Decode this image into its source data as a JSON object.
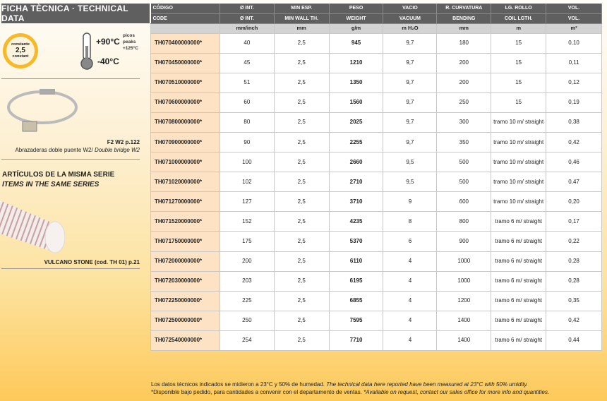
{
  "sidebar": {
    "title": "FICHA TÈCNICA · TECHNICAL DATA",
    "badge": {
      "top": "constante",
      "value": "2,5",
      "bottom": "constant"
    },
    "temp_max": "+90°C",
    "temp_min": "-40°C",
    "peaks": [
      "picos",
      "peaks",
      "+125°C"
    ],
    "accessory": {
      "ref": "F2 W2 p.122",
      "desc_es": "Abrazaderas doble puente W2/ ",
      "desc_en": "Double bridge W2"
    },
    "series": {
      "title_es": "ARTÍCULOS DE LA MISMA SERIE",
      "title_en": "ITEMS IN THE SAME SERIES",
      "item": "VULCANO STONE (cod. TH 01) p.21"
    }
  },
  "table": {
    "headers_es": [
      "CÓDIGO",
      "Ø INT.",
      "MIN ESP.",
      "PESO",
      "VACIO",
      "R. CURVATURA",
      "LG. ROLLO",
      "VOL."
    ],
    "headers_en": [
      "CODE",
      "Ø INT.",
      "MIN WALL TH.",
      "WEIGHT",
      "VACUUM",
      "BENDING",
      "COIL LGTH.",
      "VOL."
    ],
    "units": [
      "",
      "mm/inch",
      "mm",
      "g/m",
      "m H₂O",
      "mm",
      "m",
      "m³"
    ],
    "rows": [
      [
        "TH070400000000*",
        "40",
        "2,5",
        "945",
        "9,7",
        "180",
        "15",
        "0,10"
      ],
      [
        "TH070450000000*",
        "45",
        "2,5",
        "1210",
        "9,7",
        "200",
        "15",
        "0,11"
      ],
      [
        "TH070510000000*",
        "51",
        "2,5",
        "1350",
        "9,7",
        "200",
        "15",
        "0,12"
      ],
      [
        "TH070600000000*",
        "60",
        "2,5",
        "1560",
        "9,7",
        "250",
        "15",
        "0,19"
      ],
      [
        "TH070800000000*",
        "80",
        "2,5",
        "2025",
        "9,7",
        "300",
        "tramo 10 m/ straight",
        "0,38"
      ],
      [
        "TH070900000000*",
        "90",
        "2,5",
        "2255",
        "9,7",
        "350",
        "tramo 10 m/ straight",
        "0,42"
      ],
      [
        "TH071000000000*",
        "100",
        "2,5",
        "2660",
        "9,5",
        "500",
        "tramo 10 m/ straight",
        "0,46"
      ],
      [
        "TH071020000000*",
        "102",
        "2,5",
        "2710",
        "9,5",
        "500",
        "tramo 10 m/ straight",
        "0,47"
      ],
      [
        "TH071270000000*",
        "127",
        "2,5",
        "3710",
        "9",
        "600",
        "tramo 10 m/ straight",
        "0,20"
      ],
      [
        "TH071520000000*",
        "152",
        "2,5",
        "4235",
        "8",
        "800",
        "tramo 6 m/ straight",
        "0,17"
      ],
      [
        "TH071750000000*",
        "175",
        "2,5",
        "5370",
        "6",
        "900",
        "tramo 6 m/ straight",
        "0,22"
      ],
      [
        "TH072000000000*",
        "200",
        "2,5",
        "6110",
        "4",
        "1000",
        "tramo 6 m/ straight",
        "0,28"
      ],
      [
        "TH072030000000*",
        "203",
        "2,5",
        "6195",
        "4",
        "1000",
        "tramo 6 m/ straight",
        "0,28"
      ],
      [
        "TH072250000000*",
        "225",
        "2,5",
        "6855",
        "4",
        "1200",
        "tramo 6 m/ straight",
        "0,35"
      ],
      [
        "TH072500000000*",
        "250",
        "2,5",
        "7595",
        "4",
        "1400",
        "tramo 6 m/ straight",
        "0,42"
      ],
      [
        "TH072540000000*",
        "254",
        "2,5",
        "7710",
        "4",
        "1400",
        "tramo 6 m/ straight",
        "0,44"
      ]
    ]
  },
  "footer": {
    "line1_es": "Los datos técnicos indicados se midieron a 23°C y 50% de humedad. ",
    "line1_en": "The technical data here reported have been measured at 23°C with 50% umidity.",
    "line2_es": "*Disponible bajo pedido, para cantidades a convenir con el departamento de ventas. ",
    "line2_en": "*Available on request, contact our sales office for more info and quantities."
  }
}
